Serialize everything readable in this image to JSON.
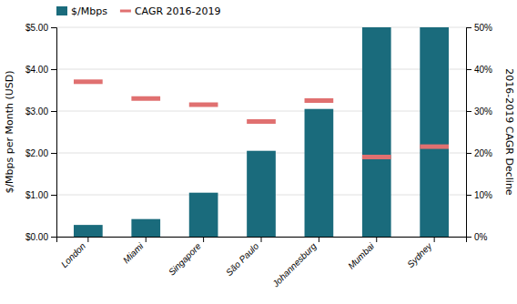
{
  "chart_data": {
    "type": "bar",
    "categories": [
      "London",
      "Miami",
      "Singapore",
      "São Paulo",
      "Johannesburg",
      "Mumbai",
      "Sydney"
    ],
    "series": [
      {
        "name": "$/Mbps",
        "type": "bar",
        "color": "#1a6b7c",
        "values": [
          0.28,
          0.42,
          1.05,
          2.05,
          3.05,
          5.0,
          5.0
        ]
      },
      {
        "name": "CAGR 2016-2019",
        "type": "scatter",
        "marker": "dash",
        "axis": "y2",
        "color": "#e07070",
        "values": [
          0.37,
          0.33,
          0.315,
          0.275,
          0.325,
          0.19,
          0.215
        ]
      }
    ],
    "ylabel": "$/Mbps per Month (USD)",
    "y2label": "2016-2019 CAGR Decline",
    "ylim": [
      0,
      5.0
    ],
    "yticks": [
      {
        "value": 0,
        "label": "$0.00"
      },
      {
        "value": 1.0,
        "label": "$1.00"
      },
      {
        "value": 2.0,
        "label": "$2.00"
      },
      {
        "value": 3.0,
        "label": "$3.00"
      },
      {
        "value": 4.0,
        "label": "$4.00"
      },
      {
        "value": 5.0,
        "label": "$5.00"
      }
    ],
    "y2lim": [
      0,
      0.5
    ],
    "y2ticks": [
      {
        "value": 0,
        "label": "0%"
      },
      {
        "value": 0.1,
        "label": "10%"
      },
      {
        "value": 0.2,
        "label": "20%"
      },
      {
        "value": 0.3,
        "label": "30%"
      },
      {
        "value": 0.4,
        "label": "40%"
      },
      {
        "value": 0.5,
        "label": "50%"
      }
    ],
    "grid": true,
    "legend": "upper left"
  }
}
